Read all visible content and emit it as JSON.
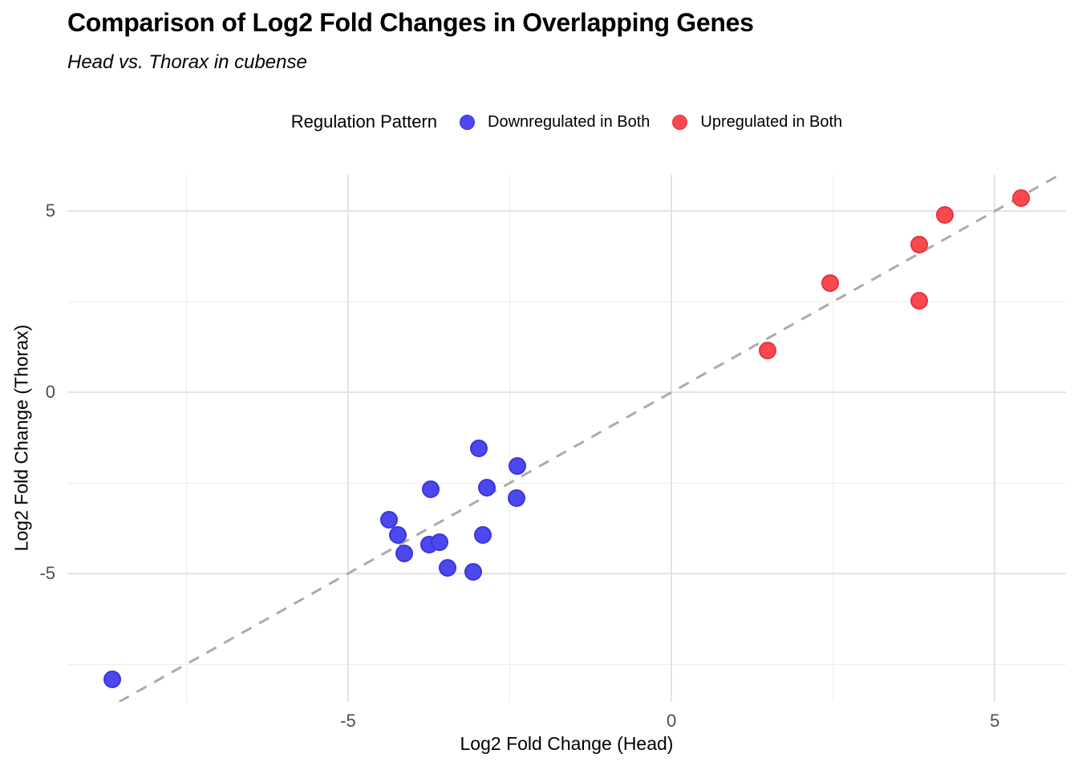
{
  "legend": {
    "title": "Regulation Pattern"
  },
  "chart_data": {
    "type": "scatter",
    "title": "Comparison of Log2 Fold Changes in Overlapping Genes",
    "subtitle": "Head vs. Thorax in cubense",
    "xlabel": "Log2 Fold Change (Head)",
    "ylabel": "Log2 Fold Change (Thorax)",
    "xlim": [
      -9.34,
      6.1
    ],
    "ylim": [
      -8.54,
      6.0
    ],
    "x_major_ticks": [
      -5,
      0,
      5
    ],
    "x_minor_ticks": [
      -7.5,
      -2.5,
      2.5
    ],
    "y_major_ticks": [
      -5,
      0,
      5
    ],
    "y_minor_ticks": [
      -7.5,
      -2.5,
      2.5
    ],
    "grid": {
      "on": true,
      "major_color": "#E3E3E3",
      "minor_color": "#EDEDED"
    },
    "legend_position": "top",
    "reference_line": {
      "type": "identity y = x",
      "style": "dashed",
      "color": "#ABABAB"
    },
    "series": [
      {
        "name": "Downregulated in Both",
        "fill": "#4B48F0",
        "border": "#3B34DD",
        "points": [
          [
            -8.65,
            -7.92
          ],
          [
            -4.37,
            -3.52
          ],
          [
            -4.23,
            -3.93
          ],
          [
            -4.13,
            -4.45
          ],
          [
            -3.75,
            -4.2
          ],
          [
            -3.72,
            -2.68
          ],
          [
            -3.58,
            -4.14
          ],
          [
            -3.46,
            -4.85
          ],
          [
            -3.07,
            -4.96
          ],
          [
            -2.98,
            -1.55
          ],
          [
            -2.92,
            -3.94
          ],
          [
            -2.86,
            -2.62
          ],
          [
            -2.39,
            -2.92
          ],
          [
            -2.38,
            -2.04
          ]
        ]
      },
      {
        "name": "Upregulated in Both",
        "fill": "#F9484E",
        "border": "#E3353F",
        "points": [
          [
            1.49,
            1.15
          ],
          [
            2.46,
            3.01
          ],
          [
            3.83,
            2.52
          ],
          [
            3.83,
            4.07
          ],
          [
            4.23,
            4.89
          ],
          [
            5.41,
            5.35
          ]
        ]
      }
    ]
  }
}
